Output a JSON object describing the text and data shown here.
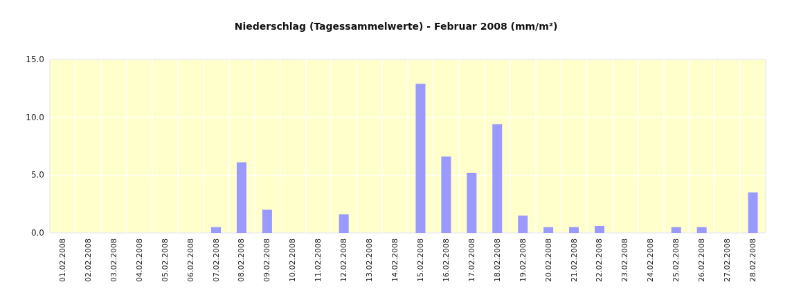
{
  "chart_data": {
    "type": "bar",
    "title": "Niederschlag (Tagessammelwerte) - Februar 2008 (mm/m²)",
    "categories": [
      "01.02.2008",
      "02.02.2008",
      "03.02.2008",
      "04.02.2008",
      "05.02.2008",
      "06.02.2008",
      "07.02.2008",
      "08.02.2008",
      "09.02.2008",
      "10.02.2008",
      "11.02.2008",
      "12.02.2008",
      "13.02.2008",
      "14.02.2008",
      "15.02.2008",
      "16.02.2008",
      "17.02.2008",
      "18.02.2008",
      "19.02.2008",
      "20.02.2008",
      "21.02.2008",
      "22.02.2008",
      "23.02.2008",
      "24.02.2008",
      "25.02.2008",
      "26.02.2008",
      "27.02.2008",
      "28.02.2008"
    ],
    "values": [
      0,
      0,
      0,
      0,
      0,
      0,
      0.5,
      6.1,
      2.0,
      0,
      0,
      1.6,
      0,
      0,
      12.9,
      6.6,
      5.2,
      9.4,
      1.5,
      0.5,
      0.5,
      0.6,
      0,
      0,
      0.5,
      0.5,
      0,
      3.5
    ],
    "color": "#9999ff",
    "ylim": [
      0,
      15
    ],
    "yticks": [
      {
        "value": 0,
        "label": "0.0"
      },
      {
        "value": 5,
        "label": "5.0"
      },
      {
        "value": 10,
        "label": "10.0"
      },
      {
        "value": 15,
        "label": "15.0"
      }
    ],
    "grid": true
  }
}
